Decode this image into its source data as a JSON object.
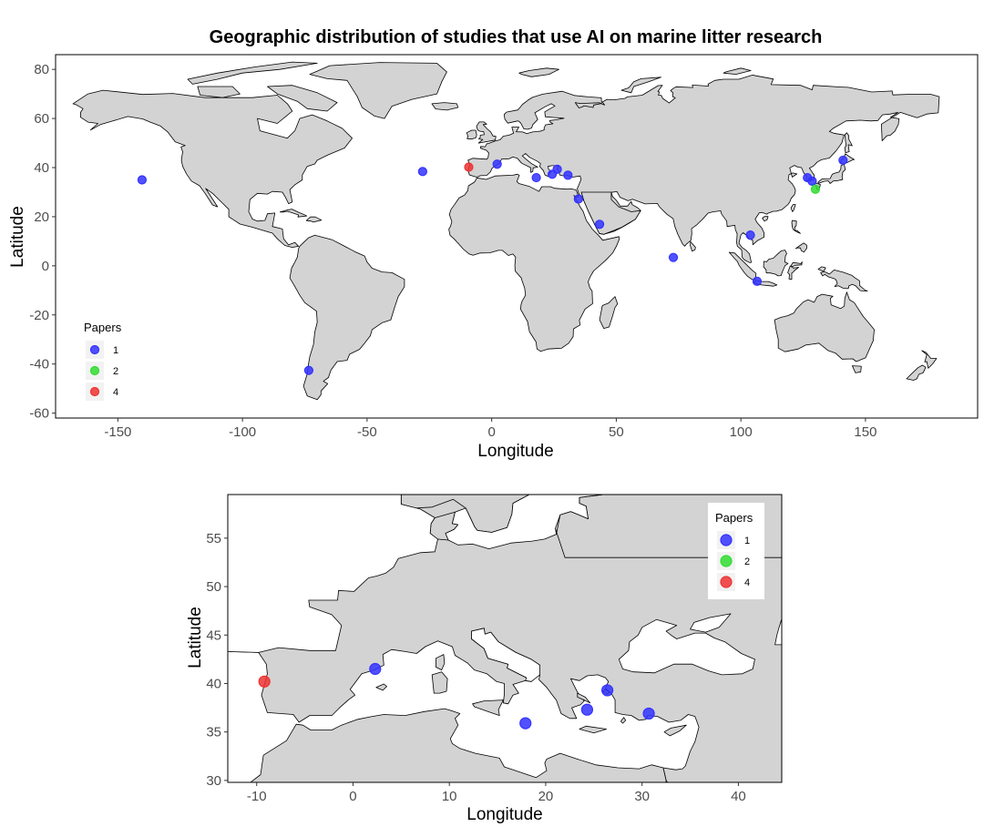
{
  "colors": {
    "land": "#d3d3d3",
    "border": "#000000",
    "papers_1": "#3333ff",
    "papers_2": "#33dd33",
    "papers_4": "#ee3333"
  },
  "chart_data": [
    {
      "type": "scatter",
      "title": "Geographic distribution of studies that use AI on marine litter research",
      "xlabel": "Longitude",
      "ylabel": "Latitude",
      "xlim": [
        -175,
        195
      ],
      "ylim": [
        -62,
        86
      ],
      "xticks": [
        -150,
        -100,
        -50,
        0,
        50,
        100,
        150
      ],
      "yticks": [
        -60,
        -40,
        -20,
        0,
        20,
        40,
        60,
        80
      ],
      "legend": {
        "title": "Papers",
        "position": "bottom-left",
        "entries": [
          "1",
          "2",
          "4"
        ]
      },
      "grid": false,
      "points": [
        {
          "lon": -140.3,
          "lat": 35.0,
          "papers": "1"
        },
        {
          "lon": -27.7,
          "lat": 38.4,
          "papers": "1"
        },
        {
          "lon": -9.2,
          "lat": 40.2,
          "papers": "4"
        },
        {
          "lon": 2.2,
          "lat": 41.4,
          "papers": "1"
        },
        {
          "lon": 17.9,
          "lat": 35.9,
          "papers": "1"
        },
        {
          "lon": 24.3,
          "lat": 37.3,
          "papers": "1"
        },
        {
          "lon": 26.3,
          "lat": 39.3,
          "papers": "1"
        },
        {
          "lon": 30.6,
          "lat": 36.9,
          "papers": "1"
        },
        {
          "lon": 34.8,
          "lat": 27.2,
          "papers": "1"
        },
        {
          "lon": 43.3,
          "lat": 16.9,
          "papers": "1"
        },
        {
          "lon": 72.9,
          "lat": 3.4,
          "papers": "1"
        },
        {
          "lon": 103.8,
          "lat": 12.5,
          "papers": "1"
        },
        {
          "lon": 106.5,
          "lat": -6.3,
          "papers": "1"
        },
        {
          "lon": 126.7,
          "lat": 35.9,
          "papers": "1"
        },
        {
          "lon": 128.6,
          "lat": 34.5,
          "papers": "1"
        },
        {
          "lon": 129.9,
          "lat": 31.2,
          "papers": "2"
        },
        {
          "lon": 141.0,
          "lat": 43.0,
          "papers": "1"
        },
        {
          "lon": -73.4,
          "lat": -42.6,
          "papers": "1"
        }
      ]
    },
    {
      "type": "scatter",
      "title": "",
      "xlabel": "Longitude",
      "ylabel": "Latitude",
      "xlim": [
        -13,
        44.5
      ],
      "ylim": [
        29.8,
        59.5
      ],
      "xticks": [
        -10,
        0,
        10,
        20,
        30,
        40
      ],
      "yticks": [
        30,
        35,
        40,
        45,
        50,
        55
      ],
      "legend": {
        "title": "Papers",
        "position": "top-right",
        "entries": [
          "1",
          "2",
          "4"
        ]
      },
      "grid": false,
      "points": [
        {
          "lon": -9.2,
          "lat": 40.2,
          "papers": "4"
        },
        {
          "lon": 2.3,
          "lat": 41.5,
          "papers": "1"
        },
        {
          "lon": 17.9,
          "lat": 35.9,
          "papers": "1"
        },
        {
          "lon": 24.3,
          "lat": 37.3,
          "papers": "1"
        },
        {
          "lon": 26.4,
          "lat": 39.3,
          "papers": "1"
        },
        {
          "lon": 30.7,
          "lat": 36.9,
          "papers": "1"
        }
      ]
    }
  ]
}
